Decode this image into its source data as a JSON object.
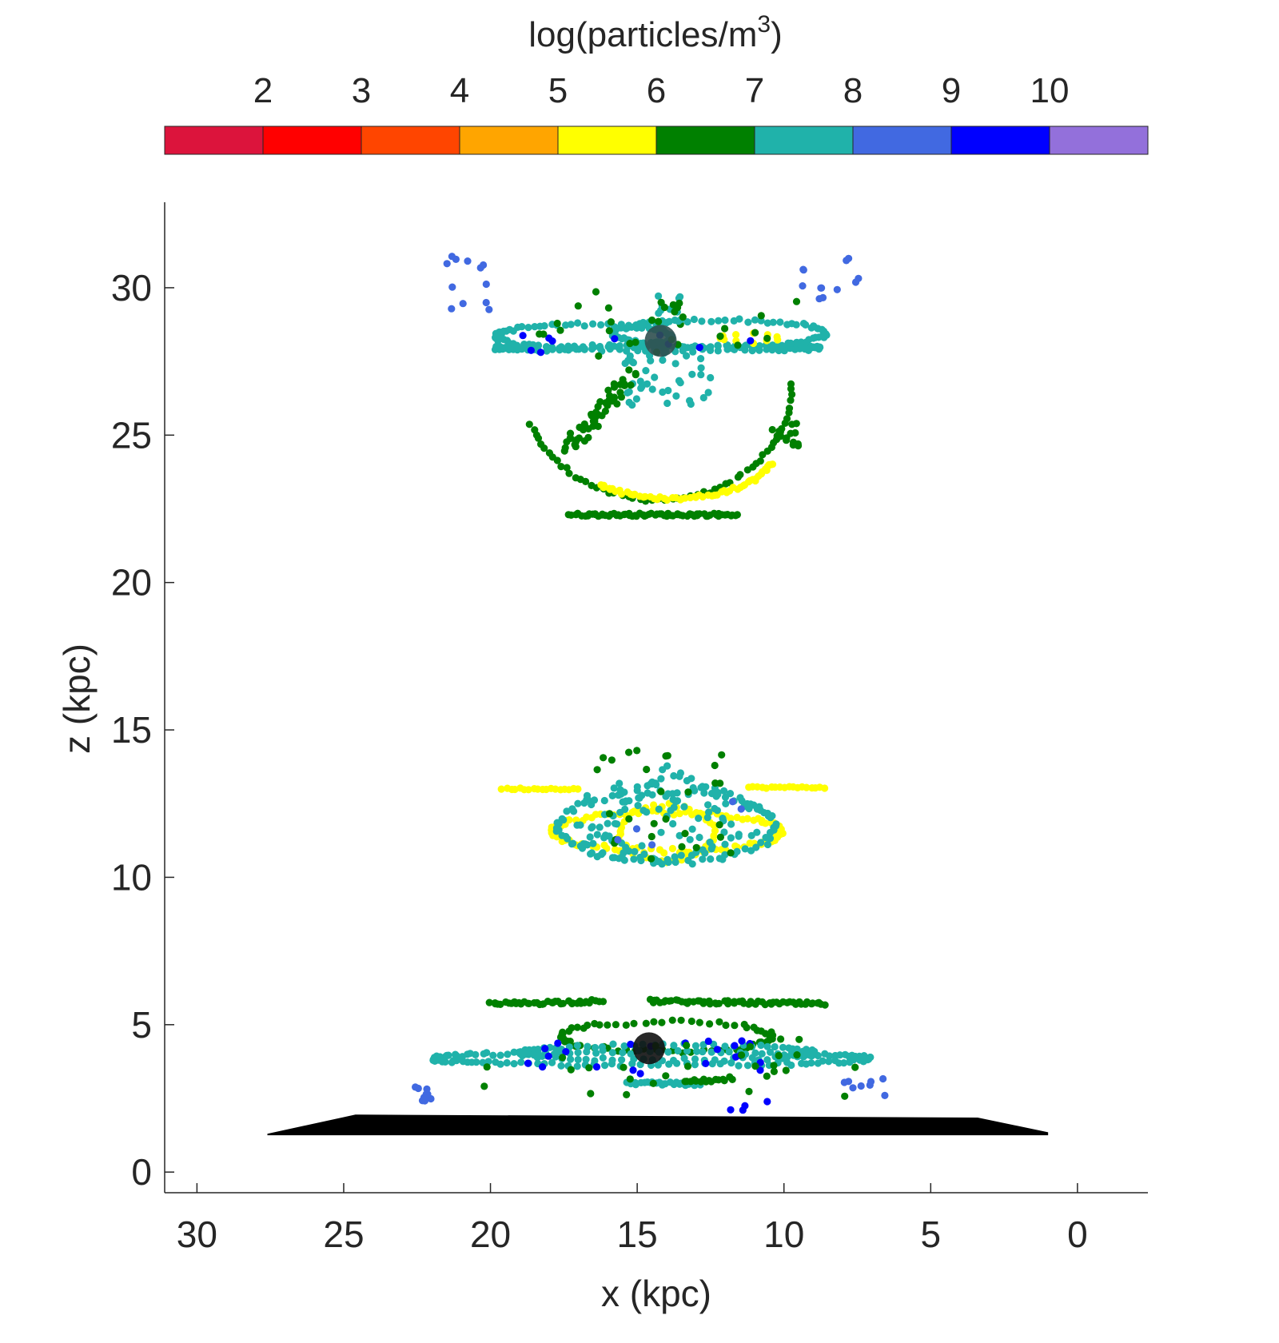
{
  "chart_data": {
    "type": "scatter",
    "title": "",
    "xlabel": "x (kpc)",
    "ylabel": "z (kpc)",
    "xlim": [
      31.1,
      -2.4
    ],
    "ylim": [
      -0.7,
      32.9
    ],
    "x_reversed": true,
    "x_ticks": [
      30,
      25,
      20,
      15,
      10,
      5,
      0
    ],
    "y_ticks": [
      0,
      5,
      10,
      15,
      20,
      25,
      30
    ],
    "colorbar": {
      "label_main": "log(particles/m",
      "label_sup": "3",
      "label_close": ")",
      "placement": "top",
      "ticks": [
        "2",
        "3",
        "4",
        "5",
        "6",
        "7",
        "8",
        "9",
        "10"
      ],
      "bins": [
        {
          "from": 1,
          "to": 2,
          "color": "#dc143c"
        },
        {
          "from": 2,
          "to": 3,
          "color": "#ff0000"
        },
        {
          "from": 3,
          "to": 4,
          "color": "#ff4500"
        },
        {
          "from": 4,
          "to": 5,
          "color": "#ffa500"
        },
        {
          "from": 5,
          "to": 6,
          "color": "#ffff00"
        },
        {
          "from": 6,
          "to": 7,
          "color": "#008000"
        },
        {
          "from": 7,
          "to": 8,
          "color": "#20b2aa"
        },
        {
          "from": 8,
          "to": 9,
          "color": "#4169e1"
        },
        {
          "from": 9,
          "to": 10,
          "color": "#0000ff"
        },
        {
          "from": 10,
          "to": 11,
          "color": "#9370db"
        }
      ]
    },
    "ground_layer": {
      "color": "#000000",
      "polygon": [
        [
          27.6,
          1.3
        ],
        [
          24.6,
          1.95
        ],
        [
          3.4,
          1.85
        ],
        [
          1.0,
          1.35
        ],
        [
          1.0,
          1.25
        ],
        [
          27.6,
          1.25
        ]
      ]
    },
    "central_objects": [
      {
        "x": 14.2,
        "z": 28.2,
        "color": "#2f4f4f"
      },
      {
        "x": 14.6,
        "z": 4.2,
        "color": "#111111"
      }
    ],
    "structures": [
      {
        "kind": "arc",
        "color": "#20b2aa",
        "cx": 14.3,
        "cz": 27.95,
        "rx": 5.5,
        "rz": 0.08,
        "a0": 0,
        "a1": 360,
        "n": 110,
        "jitter": 0.05
      },
      {
        "kind": "arc",
        "color": "#20b2aa",
        "cx": 12.2,
        "cz": 28.45,
        "rx": 3.6,
        "rz": 0.45,
        "a0": 0,
        "a1": 360,
        "n": 90,
        "jitter": 0.06
      },
      {
        "kind": "arc",
        "color": "#20b2aa",
        "cx": 16.8,
        "cz": 28.35,
        "rx": 3.0,
        "rz": 0.4,
        "a0": 0,
        "a1": 360,
        "n": 80,
        "jitter": 0.06
      },
      {
        "kind": "arc",
        "color": "#ffff00",
        "cx": 11.2,
        "cz": 28.3,
        "rx": 1.0,
        "rz": 0.15,
        "a0": 0,
        "a1": 360,
        "n": 12,
        "jitter": 0.05
      },
      {
        "kind": "scatter",
        "color": "#0000ff",
        "x0": 9.5,
        "x1": 19,
        "z0": 27.8,
        "z1": 28.4,
        "n": 10
      },
      {
        "kind": "scatter",
        "color": "#008000",
        "x0": 9.8,
        "x1": 18.5,
        "z0": 27.6,
        "z1": 28.9,
        "n": 18
      },
      {
        "kind": "scatter",
        "color": "#20b2aa",
        "x0": 12.5,
        "x1": 15.5,
        "z0": 26.0,
        "z1": 28.0,
        "n": 40
      },
      {
        "kind": "scatter",
        "color": "#20b2aa",
        "x0": 13.5,
        "x1": 14.8,
        "z0": 28.5,
        "z1": 29.8,
        "n": 14
      },
      {
        "kind": "scatter",
        "color": "#008000",
        "x0": 13.6,
        "x1": 14.6,
        "z0": 28.8,
        "z1": 29.7,
        "n": 6
      },
      {
        "kind": "line",
        "color": "#008000",
        "x0": 17.4,
        "z0": 24.6,
        "x1": 15.2,
        "z1": 27.0,
        "n": 55,
        "jitter": 0.25
      },
      {
        "kind": "scatter",
        "color": "#008000",
        "x0": 9.5,
        "x1": 10.5,
        "z0": 24.6,
        "z1": 25.5,
        "n": 14
      },
      {
        "kind": "arc",
        "color": "#008000",
        "cx": 14.3,
        "cz": 26.7,
        "rx": 4.6,
        "rz": 3.9,
        "a0": 180,
        "a1": 340,
        "n": 60,
        "jitter": 0.06
      },
      {
        "kind": "arc",
        "color": "#ffff00",
        "cx": 13.8,
        "cz": 24.5,
        "rx": 3.5,
        "rz": 1.65,
        "a0": 195,
        "a1": 315,
        "n": 60,
        "jitter": 0.06
      },
      {
        "kind": "line",
        "color": "#008000",
        "x0": 17.3,
        "z0": 22.3,
        "x1": 11.6,
        "z1": 22.3,
        "n": 70,
        "jitter": 0.05
      },
      {
        "kind": "scatter",
        "color": "#4169e1",
        "x0": 19.8,
        "x1": 21.6,
        "z0": 29.2,
        "z1": 31.1,
        "n": 12
      },
      {
        "kind": "scatter",
        "color": "#4169e1",
        "x0": 7.2,
        "x1": 9.4,
        "z0": 29.5,
        "z1": 31.0,
        "n": 12
      },
      {
        "kind": "scatter",
        "color": "#008000",
        "x0": 8.4,
        "x1": 21.2,
        "z0": 28.9,
        "z1": 29.9,
        "n": 8
      },
      {
        "kind": "line",
        "color": "#ffff00",
        "x0": 19.6,
        "z0": 13.0,
        "x1": 17.0,
        "z1": 13.0,
        "n": 18,
        "jitter": 0.03
      },
      {
        "kind": "line",
        "color": "#ffff00",
        "x0": 11.2,
        "z0": 13.05,
        "x1": 8.6,
        "z1": 13.05,
        "n": 18,
        "jitter": 0.03
      },
      {
        "kind": "arc",
        "color": "#ffff00",
        "cx": 14.0,
        "cz": 11.55,
        "rx": 3.9,
        "rz": 0.65,
        "a0": 0,
        "a1": 360,
        "n": 110,
        "jitter": 0.08
      },
      {
        "kind": "arc",
        "color": "#ffff00",
        "cx": 14.0,
        "cz": 11.5,
        "rx": 1.6,
        "rz": 0.95,
        "a0": 0,
        "a1": 360,
        "n": 40,
        "jitter": 0.06
      },
      {
        "kind": "arc",
        "color": "#20b2aa",
        "cx": 14.0,
        "cz": 11.7,
        "rx": 3.7,
        "rz": 1.2,
        "a0": 0,
        "a1": 360,
        "n": 80,
        "jitter": 0.1
      },
      {
        "kind": "line",
        "color": "#20b2aa",
        "x0": 17.0,
        "z0": 11.0,
        "x1": 14.0,
        "z1": 13.6,
        "n": 20,
        "jitter": 0.18
      },
      {
        "kind": "line",
        "color": "#20b2aa",
        "x0": 14.0,
        "z0": 13.6,
        "x1": 10.8,
        "z1": 12.2,
        "n": 20,
        "jitter": 0.18
      },
      {
        "kind": "line",
        "color": "#20b2aa",
        "x0": 17.0,
        "z0": 11.8,
        "x1": 14.3,
        "z1": 10.5,
        "n": 16,
        "jitter": 0.15
      },
      {
        "kind": "line",
        "color": "#20b2aa",
        "x0": 14.3,
        "z0": 10.5,
        "x1": 11.0,
        "z1": 11.6,
        "n": 16,
        "jitter": 0.15
      },
      {
        "kind": "scatter",
        "color": "#20b2aa",
        "x0": 11.8,
        "x1": 16.8,
        "z0": 10.6,
        "z1": 13.2,
        "n": 60
      },
      {
        "kind": "scatter",
        "color": "#008000",
        "x0": 11.8,
        "x1": 16.6,
        "z0": 10.6,
        "z1": 14.3,
        "n": 28
      },
      {
        "kind": "scatter",
        "color": "#4169e1",
        "x0": 11.3,
        "x1": 16.2,
        "z0": 11.0,
        "z1": 12.8,
        "n": 5
      },
      {
        "kind": "line",
        "color": "#008000",
        "x0": 20.0,
        "z0": 5.7,
        "x1": 16.2,
        "z1": 5.8,
        "n": 40,
        "jitter": 0.06
      },
      {
        "kind": "line",
        "color": "#008000",
        "x0": 14.6,
        "z0": 5.8,
        "x1": 8.6,
        "z1": 5.7,
        "n": 60,
        "jitter": 0.06
      },
      {
        "kind": "arc",
        "color": "#008000",
        "cx": 14.0,
        "cz": 4.6,
        "rx": 3.6,
        "rz": 0.5,
        "a0": 0,
        "a1": 360,
        "n": 70,
        "jitter": 0.08
      },
      {
        "kind": "arc",
        "color": "#20b2aa",
        "cx": 14.5,
        "cz": 3.85,
        "rx": 7.4,
        "rz": 0.22,
        "a0": 0,
        "a1": 360,
        "n": 150,
        "jitter": 0.06
      },
      {
        "kind": "arc",
        "color": "#20b2aa",
        "cx": 14.0,
        "cz": 4.05,
        "rx": 5.0,
        "rz": 0.25,
        "a0": 0,
        "a1": 360,
        "n": 90,
        "jitter": 0.06
      },
      {
        "kind": "line",
        "color": "#20b2aa",
        "x0": 15.3,
        "z0": 3.0,
        "x1": 12.8,
        "z1": 3.0,
        "n": 26,
        "jitter": 0.06
      },
      {
        "kind": "line",
        "color": "#008000",
        "x0": 13.4,
        "z0": 3.1,
        "x1": 12.0,
        "z1": 3.1,
        "n": 14,
        "jitter": 0.05
      },
      {
        "kind": "scatter",
        "color": "#0000ff",
        "x0": 10.0,
        "x1": 19.0,
        "z0": 3.3,
        "z1": 4.5,
        "n": 22
      },
      {
        "kind": "scatter",
        "color": "#008000",
        "x0": 9.0,
        "x1": 18.0,
        "z0": 3.0,
        "z1": 4.6,
        "n": 20
      },
      {
        "kind": "scatter",
        "color": "#4169e1",
        "x0": 21.8,
        "x1": 22.9,
        "z0": 2.4,
        "z1": 2.9,
        "n": 9
      },
      {
        "kind": "scatter",
        "color": "#4169e1",
        "x0": 6.2,
        "x1": 8.4,
        "z0": 2.2,
        "z1": 3.2,
        "n": 8
      },
      {
        "kind": "scatter",
        "color": "#0000ff",
        "x0": 10.5,
        "x1": 12.5,
        "z0": 1.9,
        "z1": 2.7,
        "n": 4
      },
      {
        "kind": "scatter",
        "color": "#008000",
        "x0": 6.5,
        "x1": 21.0,
        "z0": 2.4,
        "z1": 3.7,
        "n": 10
      }
    ]
  }
}
